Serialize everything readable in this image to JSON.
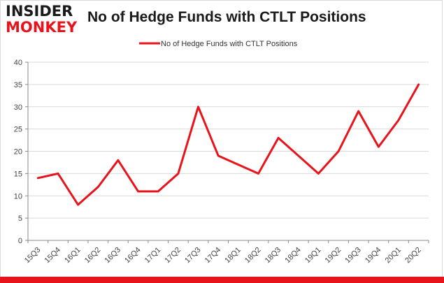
{
  "logo": {
    "top": "INSIDER",
    "bottom": "MONKEY"
  },
  "header": {
    "title": "No of Hedge Funds with CTLT Positions"
  },
  "colors": {
    "line": "#e8141b",
    "grid": "#d9d9d9",
    "brand": "#e8141b"
  },
  "chart_data": {
    "type": "line",
    "title": "No of Hedge Funds with CTLT Positions",
    "categories": [
      "15Q3",
      "15Q4",
      "16Q1",
      "16Q2",
      "16Q3",
      "16Q4",
      "17Q1",
      "17Q2",
      "17Q3",
      "17Q4",
      "18Q1",
      "18Q2",
      "18Q3",
      "18Q4",
      "19Q1",
      "19Q2",
      "19Q3",
      "19Q4",
      "20Q1",
      "20Q2"
    ],
    "series": [
      {
        "name": "No of Hedge Funds with CTLT Positions",
        "values": [
          14,
          15,
          8,
          12,
          18,
          11,
          11,
          15,
          30,
          19,
          17,
          15,
          23,
          19,
          15,
          20,
          29,
          21,
          27,
          35
        ]
      }
    ],
    "ylim": [
      0,
      40
    ],
    "yticks": [
      0,
      5,
      10,
      15,
      20,
      25,
      30,
      35,
      40
    ],
    "grid": true,
    "legend": "top-center"
  }
}
